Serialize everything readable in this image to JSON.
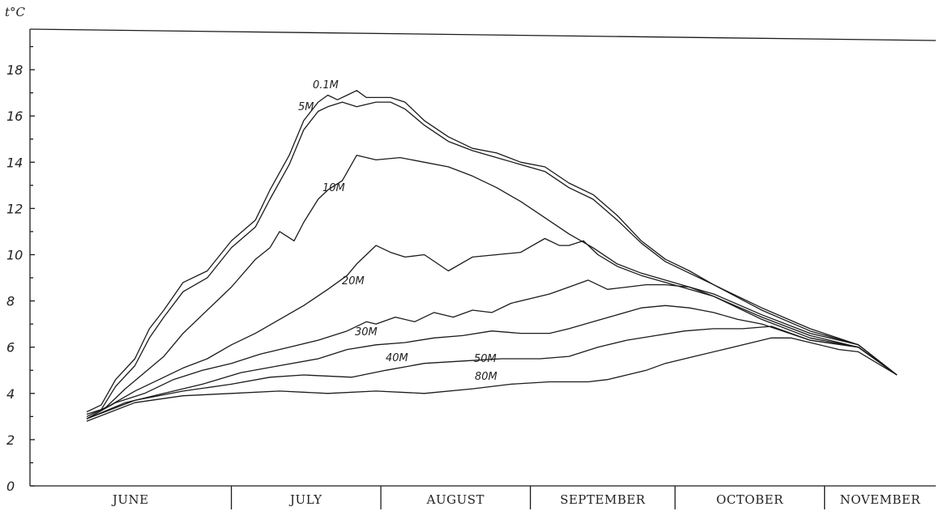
{
  "chart_data": {
    "type": "line",
    "title": "",
    "ylabel": "t°C",
    "xlabel": "",
    "ylim": [
      0,
      20
    ],
    "yticks": [
      "0",
      "2",
      "4",
      "6",
      "8",
      "10",
      "12",
      "14",
      "16",
      "18"
    ],
    "months": [
      "JUNE",
      "JULY",
      "AUGUST",
      "SEPTEMBER",
      "OCTOBER",
      "NOVEMBER"
    ],
    "x_unit": "days since 1 June",
    "grid": false,
    "series": [
      {
        "name": "0.1M",
        "x": [
          0,
          3,
          6,
          10,
          13,
          16,
          20,
          25,
          30,
          35,
          38,
          42,
          45,
          48,
          50,
          52,
          54,
          56,
          58,
          60,
          63,
          66,
          70,
          75,
          80,
          85,
          90,
          95,
          100,
          105,
          110,
          115,
          120,
          125,
          130,
          140,
          150,
          160,
          168
        ],
        "y": [
          3.2,
          3.5,
          4.6,
          5.5,
          6.8,
          7.6,
          8.8,
          9.3,
          10.6,
          11.5,
          12.8,
          14.3,
          15.8,
          16.6,
          16.9,
          16.7,
          16.9,
          17.1,
          16.8,
          16.8,
          16.8,
          16.6,
          15.8,
          15.1,
          14.6,
          14.4,
          14.0,
          13.8,
          13.1,
          12.6,
          11.7,
          10.6,
          9.8,
          9.3,
          8.7,
          7.7,
          6.8,
          6.1,
          4.8
        ]
      },
      {
        "name": "5M",
        "x": [
          0,
          3,
          6,
          10,
          13,
          16,
          20,
          25,
          30,
          35,
          38,
          42,
          45,
          48,
          50,
          53,
          56,
          60,
          63,
          66,
          70,
          75,
          80,
          85,
          90,
          95,
          100,
          105,
          110,
          115,
          120,
          125,
          130,
          140,
          150,
          160,
          168
        ],
        "y": [
          3.1,
          3.3,
          4.3,
          5.2,
          6.4,
          7.3,
          8.4,
          9.0,
          10.3,
          11.2,
          12.4,
          13.9,
          15.4,
          16.2,
          16.4,
          16.6,
          16.4,
          16.6,
          16.6,
          16.3,
          15.6,
          14.9,
          14.5,
          14.2,
          13.9,
          13.6,
          12.9,
          12.4,
          11.5,
          10.5,
          9.7,
          9.2,
          8.7,
          7.6,
          6.7,
          6.1,
          4.8
        ]
      },
      {
        "name": "10M",
        "x": [
          0,
          4,
          8,
          12,
          16,
          20,
          25,
          30,
          35,
          38,
          40,
          43,
          45,
          48,
          50,
          53,
          56,
          60,
          65,
          70,
          75,
          80,
          85,
          90,
          95,
          100,
          105,
          110,
          115,
          120,
          125,
          130,
          140,
          150,
          160,
          168
        ],
        "y": [
          3.0,
          3.4,
          4.2,
          4.9,
          5.6,
          6.6,
          7.6,
          8.6,
          9.8,
          10.3,
          11.0,
          10.6,
          11.4,
          12.4,
          12.8,
          13.2,
          14.3,
          14.1,
          14.2,
          14.0,
          13.8,
          13.4,
          12.9,
          12.3,
          11.6,
          10.9,
          10.3,
          9.6,
          9.2,
          8.9,
          8.6,
          8.3,
          7.4,
          6.6,
          6.1,
          4.8
        ]
      },
      {
        "name": "20M",
        "x": [
          0,
          5,
          10,
          15,
          20,
          25,
          30,
          35,
          40,
          45,
          50,
          54,
          56,
          60,
          63,
          66,
          70,
          75,
          80,
          85,
          90,
          95,
          98,
          100,
          103,
          106,
          110,
          115,
          120,
          125,
          130,
          140,
          150,
          160,
          168
        ],
        "y": [
          2.9,
          3.5,
          4.1,
          4.6,
          5.1,
          5.5,
          6.1,
          6.6,
          7.2,
          7.8,
          8.5,
          9.1,
          9.6,
          10.4,
          10.1,
          9.9,
          10.0,
          9.3,
          9.9,
          10.0,
          10.1,
          10.7,
          10.4,
          10.4,
          10.6,
          10.0,
          9.5,
          9.1,
          8.8,
          8.5,
          8.2,
          7.3,
          6.5,
          6.0,
          4.8
        ]
      },
      {
        "name": "30M",
        "x": [
          0,
          6,
          12,
          18,
          24,
          30,
          36,
          42,
          48,
          54,
          58,
          60,
          64,
          68,
          72,
          76,
          80,
          84,
          88,
          92,
          96,
          100,
          104,
          108,
          112,
          116,
          120,
          125,
          130,
          140,
          150,
          160,
          168
        ],
        "y": [
          2.9,
          3.6,
          4.0,
          4.6,
          5.0,
          5.3,
          5.7,
          6.0,
          6.3,
          6.7,
          7.1,
          7.0,
          7.3,
          7.1,
          7.5,
          7.3,
          7.6,
          7.5,
          7.9,
          8.1,
          8.3,
          8.6,
          8.9,
          8.5,
          8.6,
          8.7,
          8.7,
          8.6,
          8.2,
          7.2,
          6.4,
          6.0,
          4.8
        ]
      },
      {
        "name": "40M",
        "x": [
          0,
          8,
          16,
          24,
          32,
          40,
          48,
          54,
          60,
          66,
          72,
          78,
          84,
          90,
          96,
          100,
          105,
          110,
          115,
          120,
          125,
          130,
          135,
          140,
          150,
          160,
          168
        ],
        "y": [
          2.9,
          3.6,
          4.0,
          4.4,
          4.9,
          5.2,
          5.5,
          5.9,
          6.1,
          6.2,
          6.4,
          6.5,
          6.7,
          6.6,
          6.6,
          6.8,
          7.1,
          7.4,
          7.7,
          7.8,
          7.7,
          7.5,
          7.2,
          7.0,
          6.3,
          6.0,
          4.8
        ]
      },
      {
        "name": "50M",
        "x": [
          0,
          10,
          20,
          30,
          38,
          45,
          55,
          62,
          70,
          78,
          86,
          94,
          100,
          106,
          112,
          118,
          124,
          130,
          136,
          142,
          150,
          160,
          168
        ],
        "y": [
          2.9,
          3.7,
          4.1,
          4.4,
          4.7,
          4.8,
          4.7,
          5.0,
          5.3,
          5.4,
          5.5,
          5.5,
          5.6,
          6.0,
          6.3,
          6.5,
          6.7,
          6.8,
          6.8,
          6.9,
          6.3,
          6.0,
          4.8
        ]
      },
      {
        "name": "80M",
        "x": [
          0,
          10,
          20,
          30,
          40,
          50,
          60,
          70,
          80,
          88,
          96,
          100,
          104,
          108,
          112,
          116,
          120,
          126,
          132,
          138,
          142,
          146,
          150,
          156,
          160,
          168
        ],
        "y": [
          2.8,
          3.6,
          3.9,
          4.0,
          4.1,
          4.0,
          4.1,
          4.0,
          4.2,
          4.4,
          4.5,
          4.5,
          4.5,
          4.6,
          4.8,
          5.0,
          5.3,
          5.6,
          5.9,
          6.2,
          6.4,
          6.4,
          6.2,
          5.9,
          5.8,
          4.8
        ]
      }
    ]
  }
}
